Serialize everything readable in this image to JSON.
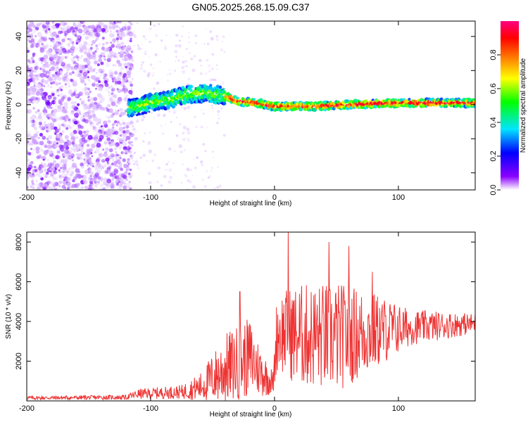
{
  "title": "GN05.2025.268.15.09.C37",
  "chart_data": [
    {
      "type": "heatmap",
      "name": "spectrogram",
      "xlabel": "Height of straight line (km)",
      "ylabel": "Frequency (Hz)",
      "xlim": [
        -200,
        162
      ],
      "ylim": [
        -50,
        49
      ],
      "x_ticks": [
        -200,
        -100,
        0,
        100
      ],
      "x_tick_labels": [
        "-200",
        "-100",
        "0",
        "100"
      ],
      "y_ticks": [
        -40,
        -20,
        0,
        20,
        40
      ],
      "y_tick_labels": [
        "-40",
        "-20",
        "0",
        "20",
        "40"
      ],
      "colorbar": {
        "label": "Normalized spectral amplitude",
        "range": [
          0,
          1
        ],
        "ticks": [
          0,
          0.2,
          0.4,
          0.6,
          0.8
        ],
        "tick_labels": [
          "0.0",
          "0.2",
          "0.4",
          "0.6",
          "0.8"
        ],
        "colormap": [
          "#ffffff",
          "#7a00ff",
          "#0000ff",
          "#00e5ff",
          "#00ff00",
          "#ffff00",
          "#ff8000",
          "#ff0000",
          "#ff0080"
        ]
      },
      "signal_track": [
        {
          "x": -115,
          "f": -2
        },
        {
          "x": -100,
          "f": 1
        },
        {
          "x": -85,
          "f": 3
        },
        {
          "x": -70,
          "f": 6
        },
        {
          "x": -55,
          "f": 7
        },
        {
          "x": -40,
          "f": 5
        },
        {
          "x": -30,
          "f": 2
        },
        {
          "x": -15,
          "f": 1
        },
        {
          "x": 0,
          "f": -1
        },
        {
          "x": 30,
          "f": -1
        },
        {
          "x": 60,
          "f": 0
        },
        {
          "x": 100,
          "f": 1
        },
        {
          "x": 160,
          "f": 1
        }
      ]
    },
    {
      "type": "line",
      "name": "snr",
      "xlabel": "Height of straight line (km)",
      "ylabel": "SNR (10 * v/v)",
      "xlim": [
        -200,
        162
      ],
      "ylim": [
        0,
        8500
      ],
      "x_ticks": [
        -200,
        -100,
        0,
        100
      ],
      "x_tick_labels": [
        "-200",
        "-100",
        "0",
        "100"
      ],
      "y_ticks": [
        2000,
        4000,
        6000,
        8000
      ],
      "y_tick_labels": [
        "2000",
        "4000",
        "6000",
        "8000"
      ],
      "color": "#ee3333",
      "envelope": [
        {
          "x": -200,
          "base": 150,
          "amp": 100
        },
        {
          "x": -120,
          "base": 180,
          "amp": 120
        },
        {
          "x": -110,
          "base": 350,
          "amp": 250
        },
        {
          "x": -75,
          "base": 450,
          "amp": 350
        },
        {
          "x": -60,
          "base": 700,
          "amp": 700
        },
        {
          "x": -40,
          "base": 1600,
          "amp": 1800
        },
        {
          "x": -20,
          "base": 2200,
          "amp": 2000
        },
        {
          "x": -10,
          "base": 1400,
          "amp": 1200
        },
        {
          "x": -1,
          "base": 900,
          "amp": 600
        },
        {
          "x": 2,
          "base": 3500,
          "amp": 2000
        },
        {
          "x": 20,
          "base": 3300,
          "amp": 2600
        },
        {
          "x": 50,
          "base": 3200,
          "amp": 2800
        },
        {
          "x": 80,
          "base": 3500,
          "amp": 2000
        },
        {
          "x": 110,
          "base": 3700,
          "amp": 900
        },
        {
          "x": 162,
          "base": 3900,
          "amp": 500
        }
      ],
      "peaks": [
        {
          "x": -28,
          "y": 5500
        },
        {
          "x": 11,
          "y": 8500
        },
        {
          "x": 44,
          "y": 8000
        },
        {
          "x": 60,
          "y": 7800
        },
        {
          "x": 79,
          "y": 6500
        }
      ]
    }
  ]
}
